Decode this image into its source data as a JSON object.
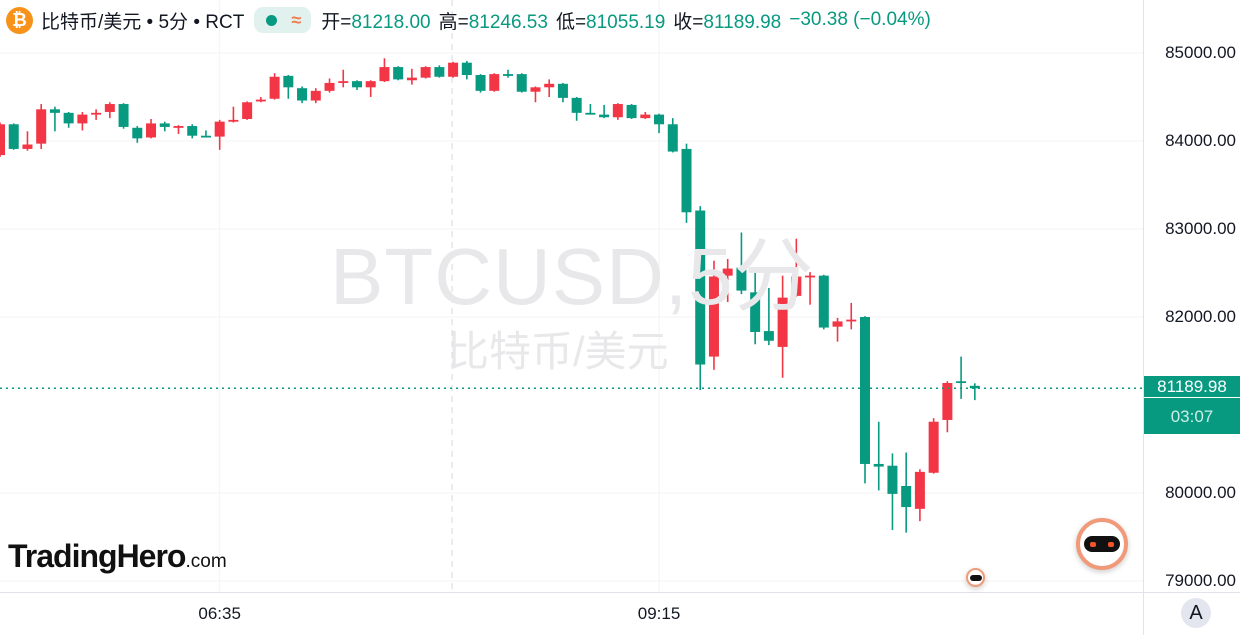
{
  "header": {
    "symbol_icon": "bitcoin-icon",
    "title": "比特币/美元 • 5分 • RCT",
    "status_wave": "≈",
    "open_label": "开=",
    "open": "81218.00",
    "high_label": "高=",
    "high": "81246.53",
    "low_label": "低=",
    "low": "81055.19",
    "close_label": "收=",
    "close": "81189.98",
    "change": "−30.38 (−0.04%)"
  },
  "watermark": {
    "symbol": "BTCUSD,5分",
    "name": "比特币/美元"
  },
  "logo": {
    "brand": "TradingHero",
    "suffix": ".com"
  },
  "price_tag": {
    "price": "81189.98",
    "countdown": "03:07"
  },
  "axis_button": "A",
  "colors": {
    "up": "#f23645",
    "down": "#089981",
    "last_price_line": "#089981"
  },
  "chart_data": {
    "type": "candlestick",
    "interval": "5分",
    "y_ticks": [
      "85000.00",
      "84000.00",
      "83000.00",
      "82000.00",
      "80000.00",
      "79000.00"
    ],
    "y_tick_values": [
      85000,
      84000,
      83000,
      82000,
      80000,
      79000
    ],
    "x_ticks": [
      {
        "label": "06:35",
        "index": 16
      },
      {
        "label": "09:15",
        "index": 48
      }
    ],
    "ylim": [
      78900,
      85600
    ],
    "grid": true,
    "last_price": 81189.98,
    "crosshair_index": 33,
    "ohlc": [
      [
        83840,
        84210,
        83820,
        84190
      ],
      [
        84190,
        84200,
        83900,
        83910
      ],
      [
        83910,
        84110,
        83890,
        83960
      ],
      [
        83970,
        84420,
        83910,
        84360
      ],
      [
        84360,
        84390,
        84110,
        84320
      ],
      [
        84320,
        84330,
        84150,
        84200
      ],
      [
        84200,
        84330,
        84120,
        84300
      ],
      [
        84300,
        84360,
        84240,
        84320
      ],
      [
        84330,
        84440,
        84260,
        84420
      ],
      [
        84420,
        84430,
        84140,
        84160
      ],
      [
        84150,
        84170,
        83980,
        84030
      ],
      [
        84040,
        84250,
        84030,
        84200
      ],
      [
        84200,
        84220,
        84110,
        84160
      ],
      [
        84160,
        84180,
        84080,
        84170
      ],
      [
        84170,
        84190,
        84030,
        84060
      ],
      [
        84060,
        84120,
        84040,
        84050
      ],
      [
        84050,
        84240,
        83900,
        84220
      ],
      [
        84230,
        84390,
        84210,
        84240
      ],
      [
        84250,
        84450,
        84240,
        84440
      ],
      [
        84450,
        84500,
        84440,
        84470
      ],
      [
        84480,
        84770,
        84470,
        84730
      ],
      [
        84740,
        84750,
        84480,
        84610
      ],
      [
        84600,
        84620,
        84430,
        84460
      ],
      [
        84460,
        84600,
        84430,
        84570
      ],
      [
        84570,
        84710,
        84550,
        84660
      ],
      [
        84660,
        84810,
        84610,
        84680
      ],
      [
        84680,
        84690,
        84580,
        84610
      ],
      [
        84610,
        84690,
        84500,
        84680
      ],
      [
        84680,
        84940,
        84670,
        84840
      ],
      [
        84840,
        84850,
        84690,
        84700
      ],
      [
        84690,
        84820,
        84640,
        84720
      ],
      [
        84720,
        84850,
        84710,
        84840
      ],
      [
        84840,
        84860,
        84720,
        84730
      ],
      [
        84730,
        84900,
        84720,
        84890
      ],
      [
        84890,
        84910,
        84700,
        84750
      ],
      [
        84750,
        84760,
        84550,
        84570
      ],
      [
        84570,
        84770,
        84560,
        84760
      ],
      [
        84760,
        84810,
        84720,
        84750
      ],
      [
        84760,
        84770,
        84550,
        84560
      ],
      [
        84560,
        84620,
        84440,
        84610
      ],
      [
        84610,
        84700,
        84500,
        84650
      ],
      [
        84650,
        84660,
        84440,
        84490
      ],
      [
        84490,
        84500,
        84230,
        84320
      ],
      [
        84320,
        84420,
        84300,
        84310
      ],
      [
        84300,
        84410,
        84260,
        84270
      ],
      [
        84270,
        84430,
        84240,
        84420
      ],
      [
        84410,
        84420,
        84250,
        84260
      ],
      [
        84260,
        84330,
        84250,
        84300
      ],
      [
        84300,
        84310,
        84090,
        84190
      ],
      [
        84190,
        84260,
        83870,
        83880
      ],
      [
        83910,
        83970,
        83070,
        83190
      ],
      [
        83210,
        83260,
        81170,
        81460
      ],
      [
        81550,
        82640,
        81400,
        82460
      ],
      [
        82470,
        82660,
        82170,
        82550
      ],
      [
        82560,
        82960,
        82260,
        82300
      ],
      [
        82280,
        82500,
        81690,
        81830
      ],
      [
        81840,
        82330,
        81680,
        81730
      ],
      [
        81660,
        82470,
        81310,
        82220
      ],
      [
        82240,
        82890,
        82230,
        82460
      ],
      [
        82460,
        82510,
        82140,
        82470
      ],
      [
        82470,
        82480,
        81860,
        81880
      ],
      [
        81890,
        81990,
        81720,
        81950
      ],
      [
        81960,
        82160,
        81860,
        81970
      ],
      [
        82000,
        82010,
        80110,
        80330
      ],
      [
        80330,
        80810,
        80030,
        80300
      ],
      [
        80310,
        80450,
        79580,
        79990
      ],
      [
        80080,
        80460,
        79550,
        79840
      ],
      [
        79820,
        80270,
        79680,
        80240
      ],
      [
        80230,
        80850,
        80220,
        80810
      ],
      [
        80830,
        81270,
        80690,
        81250
      ],
      [
        81270,
        81550,
        81070,
        81250
      ],
      [
        81218.0,
        81246.53,
        81055.19,
        81189.98
      ]
    ]
  }
}
